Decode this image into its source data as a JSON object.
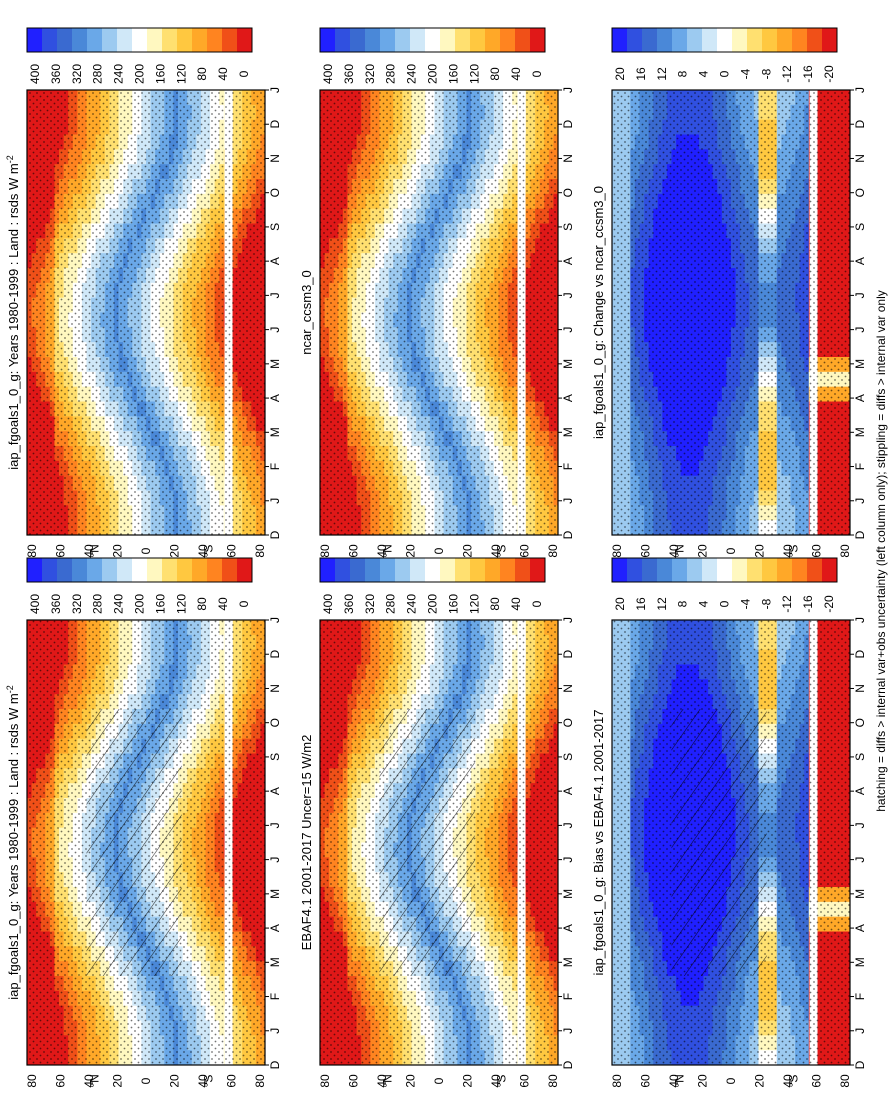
{
  "colors": {
    "palette": [
      "#2020ff",
      "#3050e0",
      "#3a6ad0",
      "#4a88d8",
      "#6aa8e8",
      "#9ccaf0",
      "#d0e8f8",
      "#ffffff",
      "#fff8c0",
      "#ffe070",
      "#ffc840",
      "#ffa828",
      "#ff8420",
      "#f05018",
      "#e01818"
    ],
    "stipple": "#000000",
    "hatch": "#000000"
  },
  "footnote": "hatching = diffs > internal var+obs uncertainty (left column only); stippling = diffs > internal var only",
  "chart_data": [
    {
      "type": "heatmap",
      "title": "iap_fgoals1_0_g: Years 1980-1999 : Land : rsds W m",
      "title_sup": "-2",
      "field": "seasonal",
      "x": [
        "D",
        "J",
        "F",
        "M",
        "A",
        "M",
        "J",
        "J",
        "A",
        "S",
        "O",
        "N",
        "D",
        "J"
      ],
      "y": [
        "80",
        "60",
        "40",
        "20",
        "0",
        "20",
        "40",
        "60",
        "80"
      ],
      "y_unit_north": "°N",
      "y_unit_south": "°S",
      "colorbar": [
        "400",
        "360",
        "320",
        "280",
        "240",
        "200",
        "160",
        "120",
        "80",
        "40",
        "0"
      ],
      "hatched": true,
      "stippled": true
    },
    {
      "type": "heatmap",
      "title": "iap_fgoals1_0_g: Years 1980-1999 : Land : rsds W m",
      "title_sup": "-2",
      "field": "seasonal",
      "x": [
        "D",
        "J",
        "F",
        "M",
        "A",
        "M",
        "J",
        "J",
        "A",
        "S",
        "O",
        "N",
        "D",
        "J"
      ],
      "y": [
        "80",
        "60",
        "40",
        "20",
        "0",
        "20",
        "40",
        "60",
        "80"
      ],
      "y_unit_north": "°N",
      "y_unit_south": "°S",
      "colorbar": [
        "400",
        "360",
        "320",
        "280",
        "240",
        "200",
        "160",
        "120",
        "80",
        "40",
        "0"
      ],
      "hatched": false,
      "stippled": true
    },
    {
      "type": "heatmap",
      "title": "EBAF4.1 2001-2017 Uncer=15 W/m2",
      "title_sup": "",
      "field": "seasonal",
      "x": [
        "D",
        "J",
        "F",
        "M",
        "A",
        "M",
        "J",
        "J",
        "A",
        "S",
        "O",
        "N",
        "D",
        "J"
      ],
      "y": [
        "80",
        "60",
        "40",
        "20",
        "0",
        "20",
        "40",
        "60",
        "80"
      ],
      "y_unit_north": "°N",
      "y_unit_south": "°S",
      "colorbar": [
        "400",
        "360",
        "320",
        "280",
        "240",
        "200",
        "160",
        "120",
        "80",
        "40",
        "0"
      ],
      "hatched": true,
      "stippled": true
    },
    {
      "type": "heatmap",
      "title": "ncar_ccsm3_0",
      "title_sup": "",
      "field": "seasonal",
      "x": [
        "D",
        "J",
        "F",
        "M",
        "A",
        "M",
        "J",
        "J",
        "A",
        "S",
        "O",
        "N",
        "D",
        "J"
      ],
      "y": [
        "80",
        "60",
        "40",
        "20",
        "0",
        "20",
        "40",
        "60",
        "80"
      ],
      "y_unit_north": "°N",
      "y_unit_south": "°S",
      "colorbar": [
        "400",
        "360",
        "320",
        "280",
        "240",
        "200",
        "160",
        "120",
        "80",
        "40",
        "0"
      ],
      "hatched": false,
      "stippled": true
    },
    {
      "type": "heatmap",
      "title": "iap_fgoals1_0_g: Bias vs EBAF4.1 2001-2017",
      "title_sup": "",
      "field": "diff",
      "x": [
        "D",
        "J",
        "F",
        "M",
        "A",
        "M",
        "J",
        "J",
        "A",
        "S",
        "O",
        "N",
        "D",
        "J"
      ],
      "y": [
        "80",
        "60",
        "40",
        "20",
        "0",
        "20",
        "40",
        "60",
        "80"
      ],
      "y_unit_north": "°N",
      "y_unit_south": "°S",
      "colorbar": [
        "20",
        "16",
        "12",
        "8",
        "4",
        "0",
        "-4",
        "-8",
        "-12",
        "-16",
        "-20"
      ],
      "hatched": true,
      "stippled": true
    },
    {
      "type": "heatmap",
      "title": "iap_fgoals1_0_g: Change vs ncar_ccsm3_0",
      "title_sup": "",
      "field": "diff",
      "x": [
        "D",
        "J",
        "F",
        "M",
        "A",
        "M",
        "J",
        "J",
        "A",
        "S",
        "O",
        "N",
        "D",
        "J"
      ],
      "y": [
        "80",
        "60",
        "40",
        "20",
        "0",
        "20",
        "40",
        "60",
        "80"
      ],
      "y_unit_north": "°N",
      "y_unit_south": "°S",
      "colorbar": [
        "20",
        "16",
        "12",
        "8",
        "4",
        "0",
        "-4",
        "-8",
        "-12",
        "-16",
        "-20"
      ],
      "hatched": false,
      "stippled": true
    }
  ]
}
